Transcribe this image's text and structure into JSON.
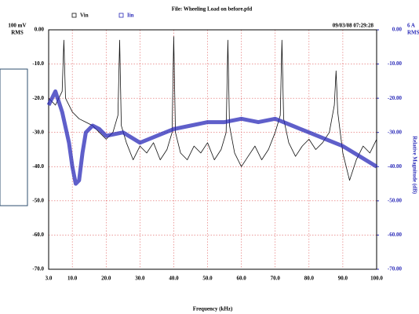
{
  "chart_data": {
    "type": "line",
    "title": "File: Wheeling Load on before.pfd",
    "timestamp": "09/03/08 07:29:28",
    "y_label": [
      "100 mV",
      "RMS"
    ],
    "y2_label": [
      "6 A",
      "RMS"
    ],
    "y2_axis_title": "Relative Magnitude (dB)",
    "x_label": "Frequency (kHz)",
    "xlim": [
      3,
      100
    ],
    "xticks": [
      {
        "value": 3,
        "label": "3.0"
      },
      {
        "value": 10,
        "label": "10.0"
      },
      {
        "value": 20,
        "label": "20.0"
      },
      {
        "value": 30,
        "label": "30.0"
      },
      {
        "value": 40,
        "label": "40.0"
      },
      {
        "value": 50,
        "label": "50.0"
      },
      {
        "value": 60,
        "label": "60.0"
      },
      {
        "value": 70,
        "label": "70.0"
      },
      {
        "value": 80,
        "label": "80.0"
      },
      {
        "value": 90,
        "label": "90.0"
      },
      {
        "value": 100,
        "label": "100.0"
      }
    ],
    "ylim": [
      -70,
      0
    ],
    "yticks": [
      {
        "value": 0,
        "label": "0.00"
      },
      {
        "value": -10,
        "label": "-10.0"
      },
      {
        "value": -20,
        "label": "-20.0"
      },
      {
        "value": -30,
        "label": "-30.0"
      },
      {
        "value": -40,
        "label": "-40.0"
      },
      {
        "value": -50,
        "label": "-50.0"
      },
      {
        "value": -60,
        "label": "-60.0"
      },
      {
        "value": -70,
        "label": "-70.0"
      }
    ],
    "y2lim": [
      -70,
      0
    ],
    "y2ticks": [
      {
        "value": 0,
        "label": "0.00"
      },
      {
        "value": -10,
        "label": "-10.00"
      },
      {
        "value": -20,
        "label": "-20.00"
      },
      {
        "value": -30,
        "label": "-30.00"
      },
      {
        "value": -40,
        "label": "-40.00"
      },
      {
        "value": -50,
        "label": "-50.00"
      },
      {
        "value": -60,
        "label": "-60.00"
      },
      {
        "value": -70,
        "label": "-70.00"
      }
    ],
    "grid": true,
    "series": [
      {
        "name": "Vin",
        "color": "#111111",
        "x": [
          3,
          5,
          7,
          7.5,
          8,
          10,
          12,
          14,
          16,
          18,
          20,
          22,
          23.5,
          24,
          24.5,
          26,
          28,
          30,
          32,
          34,
          36,
          38,
          39.5,
          40,
          40.5,
          42,
          44,
          46,
          48,
          50,
          52,
          54,
          55.5,
          56,
          56.5,
          58,
          60,
          62,
          64,
          66,
          68,
          70,
          71.5,
          72,
          72.5,
          74,
          76,
          78,
          80,
          82,
          84,
          86,
          87.5,
          88,
          88.5,
          90,
          92,
          94,
          96,
          98,
          100
        ],
        "values": [
          -20,
          -22,
          -18,
          -3,
          -20,
          -24,
          -26,
          -27,
          -28,
          -30,
          -32,
          -30,
          -25,
          -3,
          -28,
          -33,
          -38,
          -34,
          -36,
          -33,
          -38,
          -35,
          -30,
          -2,
          -30,
          -36,
          -38,
          -34,
          -36,
          -33,
          -38,
          -35,
          -30,
          -3,
          -28,
          -36,
          -40,
          -37,
          -34,
          -38,
          -35,
          -30,
          -25,
          -3,
          -26,
          -33,
          -37,
          -34,
          -32,
          -35,
          -33,
          -30,
          -22,
          -12,
          -24,
          -36,
          -44,
          -38,
          -34,
          -36,
          -32
        ]
      },
      {
        "name": "Iin",
        "color": "#2a2ab8",
        "axis": "y2",
        "x": [
          3,
          5,
          7,
          9,
          10,
          11,
          12,
          13,
          14,
          16,
          18,
          20,
          25,
          30,
          35,
          40,
          45,
          50,
          55,
          60,
          65,
          70,
          75,
          80,
          85,
          90,
          95,
          100
        ],
        "values": [
          -22,
          -18,
          -24,
          -33,
          -40,
          -45,
          -44,
          -36,
          -30,
          -28,
          -29,
          -31,
          -30,
          -33,
          -31,
          -29,
          -28,
          -27,
          -27,
          -26,
          -27,
          -26,
          -28,
          -30,
          -32,
          -34,
          -37,
          -40
        ]
      }
    ]
  }
}
